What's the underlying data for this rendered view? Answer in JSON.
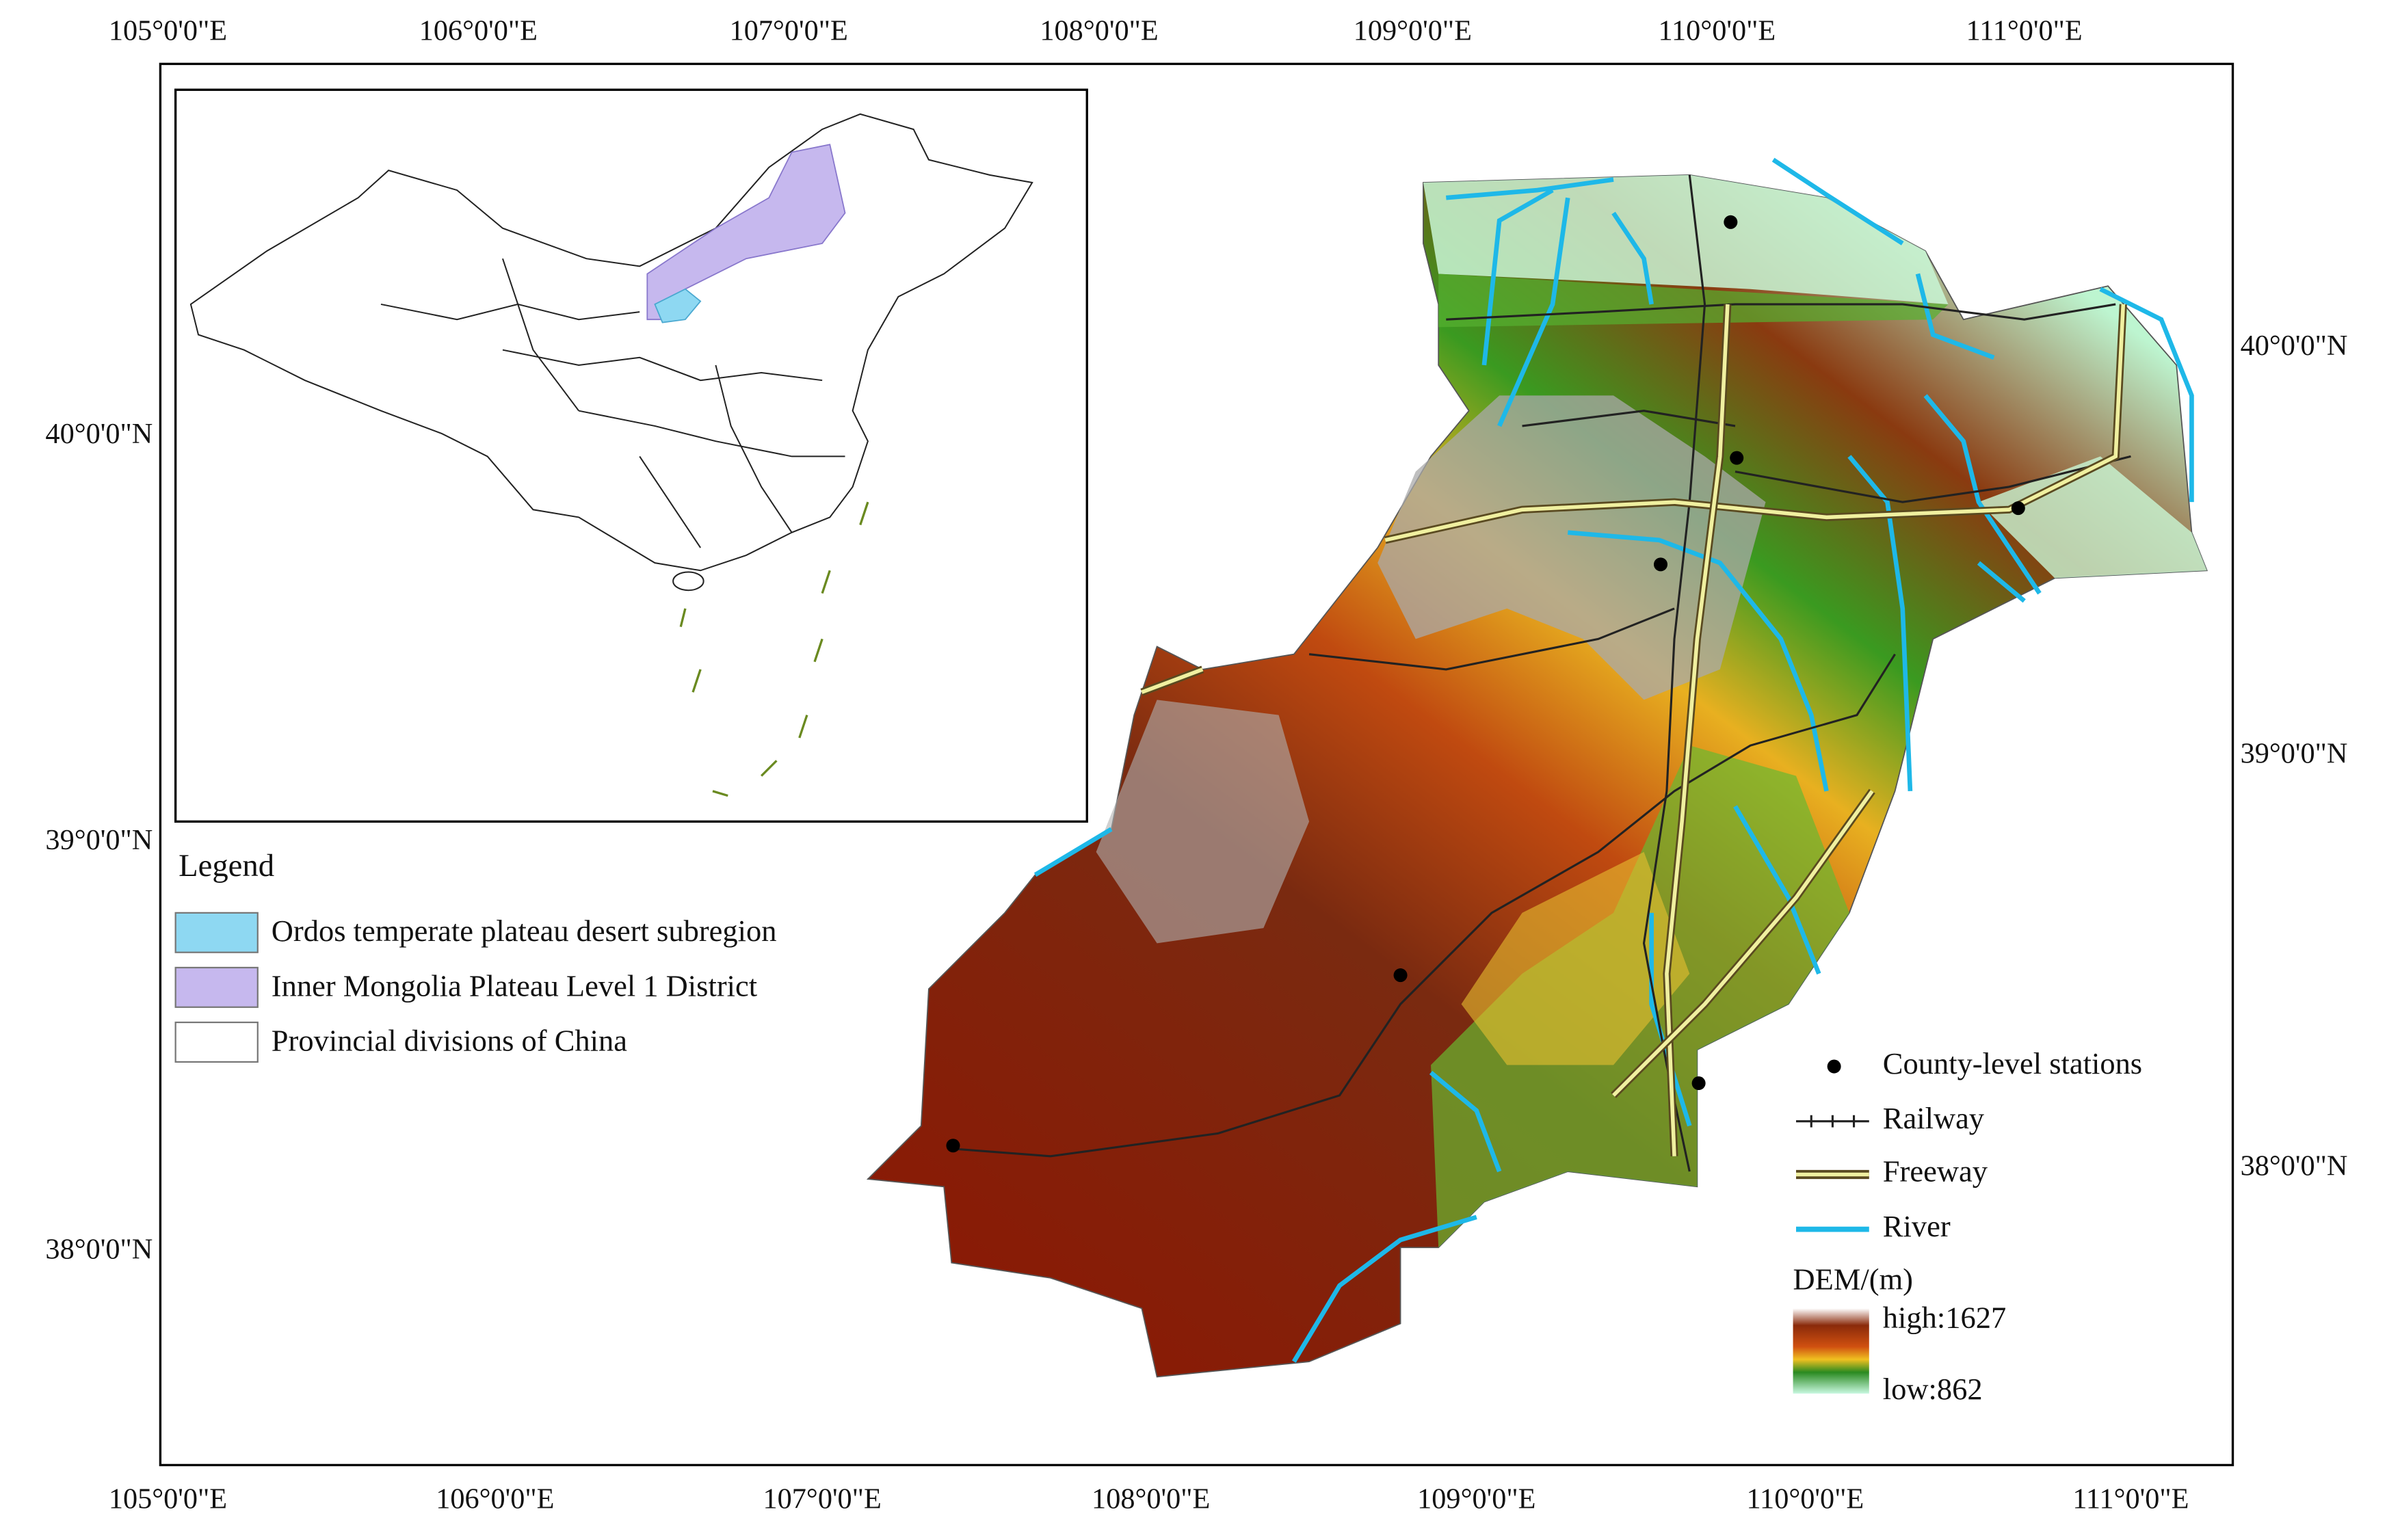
{
  "map": {
    "top_labels": [
      "105°0'0\"E",
      "106°0'0\"E",
      "107°0'0\"E",
      "108°0'0\"E",
      "109°0'0\"E",
      "110°0'0\"E",
      "111°0'0\"E"
    ],
    "bottom_labels": [
      "105°0'0\"E",
      "106°0'0\"E",
      "107°0'0\"E",
      "108°0'0\"E",
      "109°0'0\"E",
      "110°0'0\"E",
      "111°0'0\"E"
    ],
    "left_labels": [
      "40°0'0\"N",
      "39°0'0\"N",
      "38°0'0\"N"
    ],
    "right_labels": [
      "40°0'0\"N",
      "39°0'0\"N",
      "38°0'0\"N"
    ]
  },
  "inset_legend": {
    "title": "Legend",
    "items": [
      "Ordos temperate plateau desert subregion",
      "Inner Mongolia Plateau Level 1 District",
      "Provincial divisions of China"
    ]
  },
  "map_legend": {
    "items": [
      "County-level stations",
      "Railway",
      "Freeway",
      "River"
    ],
    "dem_title": "DEM/(m)",
    "dem_high": "high:1627",
    "dem_low": "low:862"
  }
}
